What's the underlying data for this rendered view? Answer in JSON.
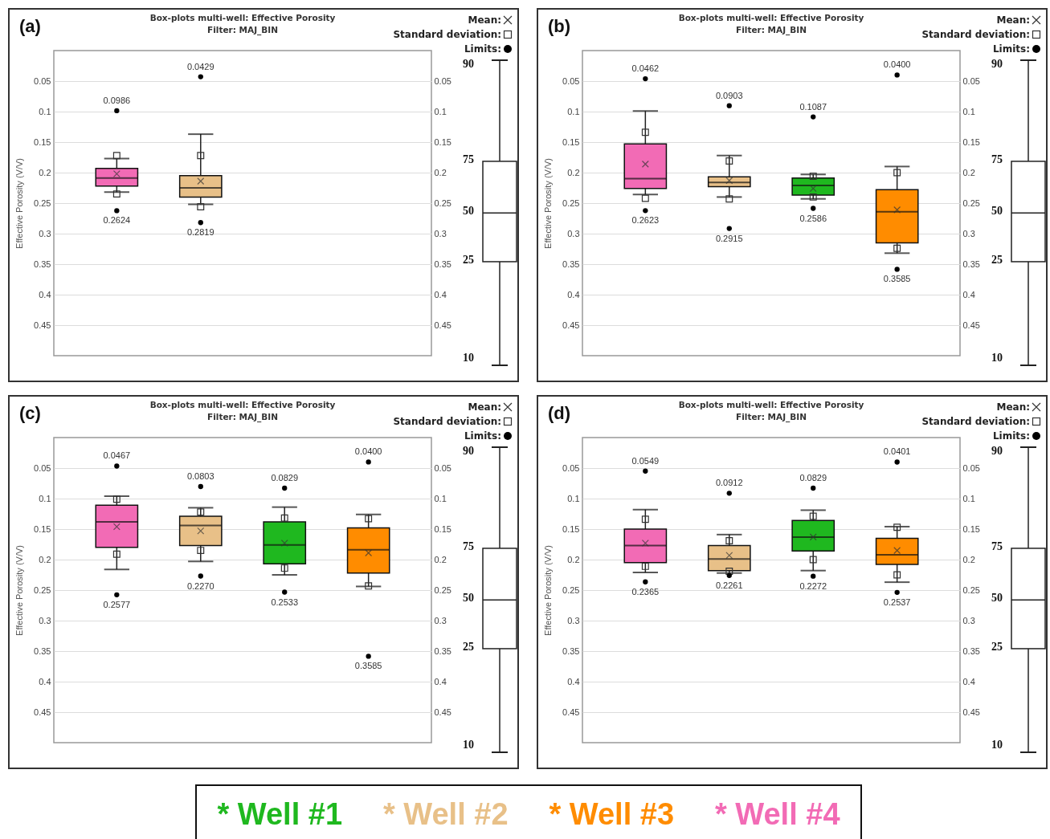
{
  "chart_data": [
    {
      "type": "box",
      "title": "Box-plots multi-well: Effective Porosity",
      "subtitle": "Filter: MAJ_BIN",
      "ylabel": "Effective Porosity (V/V)",
      "categories": [
        null,
        null,
        null,
        null
      ],
      "ylim": [
        0.5,
        0
      ],
      "yticks": [
        0.05,
        0.1,
        0.15,
        0.2,
        0.25,
        0.3,
        0.35,
        0.4,
        0.45
      ],
      "y2lim": [
        0.5,
        0
      ],
      "y2ticks": [
        0.05,
        0.1,
        0.15,
        0.2,
        0.25,
        0.3,
        0.35,
        0.4,
        0.45
      ],
      "grid": "y",
      "annotations": [
        "(a)",
        "Mean:",
        "Standard deviation:",
        "Limits:",
        "90",
        "75",
        "50",
        "25",
        "10"
      ],
      "series": [
        {
          "color": "#1fb81f",
          "boxes": [
            null,
            null,
            null,
            null
          ]
        },
        {
          "color": "#e8c088",
          "boxes": [
            null,
            {
              "low": 0.137,
              "q1": 0.205,
              "median": 0.225,
              "q3": 0.24,
              "high": 0.252,
              "mean": 0.214
            },
            null,
            null
          ]
        },
        {
          "color": "#ff8c00",
          "boxes": [
            null,
            null,
            null,
            null
          ]
        },
        {
          "color": "#f26bb5",
          "boxes": [
            {
              "low": 0.177,
              "q1": 0.193,
              "median": 0.209,
              "q3": 0.222,
              "high": 0.232,
              "mean": 0.202
            },
            null,
            null,
            null
          ]
        },
        {
          "type": "scatter",
          "marker": "square",
          "color": "#333333",
          "values": [
            0.172,
            0.172,
            null,
            null
          ]
        },
        {
          "type": "scatter",
          "marker": "square",
          "color": "#333333",
          "values": [
            0.235,
            0.256,
            null,
            null
          ]
        },
        {
          "type": "scatter",
          "marker": "circle",
          "color": "#000000",
          "values": [
            0.0986,
            0.0429,
            null,
            null
          ],
          "value_labels": [
            "0.0986",
            "0.0429",
            null,
            null
          ]
        },
        {
          "type": "scatter",
          "marker": "circle",
          "color": "#000000",
          "values": [
            0.2624,
            0.2819,
            null,
            null
          ],
          "value_labels": [
            "0.2624",
            "0.2819",
            null,
            null
          ]
        }
      ]
    },
    {
      "type": "box",
      "title": "Box-plots multi-well: Effective Porosity",
      "subtitle": "Filter: MAJ_BIN",
      "ylabel": "Effective Porosity (V/V)",
      "categories": [
        null,
        null,
        null,
        null
      ],
      "ylim": [
        0.5,
        0
      ],
      "yticks": [
        0.05,
        0.1,
        0.15,
        0.2,
        0.25,
        0.3,
        0.35,
        0.4,
        0.45
      ],
      "y2lim": [
        0.5,
        0
      ],
      "y2ticks": [
        0.05,
        0.1,
        0.15,
        0.2,
        0.25,
        0.3,
        0.35,
        0.4,
        0.45
      ],
      "grid": "y",
      "annotations": [
        "(b)",
        "Mean:",
        "Standard deviation:",
        "Limits:",
        "90",
        "75",
        "50",
        "25",
        "10"
      ],
      "series": [
        {
          "color": "#1fb81f",
          "boxes": [
            null,
            null,
            {
              "low": 0.203,
              "q1": 0.209,
              "median": 0.221,
              "q3": 0.237,
              "high": 0.243,
              "mean": 0.226
            },
            null
          ]
        },
        {
          "color": "#e8c088",
          "boxes": [
            null,
            {
              "low": 0.172,
              "q1": 0.207,
              "median": 0.216,
              "q3": 0.223,
              "high": 0.24,
              "mean": 0.213
            },
            null,
            null
          ]
        },
        {
          "color": "#ff8c00",
          "boxes": [
            null,
            null,
            null,
            {
              "low": 0.19,
              "q1": 0.228,
              "median": 0.264,
              "q3": 0.315,
              "high": 0.332,
              "mean": 0.261
            }
          ]
        },
        {
          "color": "#f26bb5",
          "boxes": [
            {
              "low": 0.099,
              "q1": 0.153,
              "median": 0.21,
              "q3": 0.226,
              "high": 0.236,
              "mean": 0.186
            },
            null,
            null,
            null
          ]
        },
        {
          "type": "scatter",
          "marker": "square",
          "color": "#333333",
          "values": [
            0.134,
            0.181,
            0.206,
            0.2
          ]
        },
        {
          "type": "scatter",
          "marker": "square",
          "color": "#333333",
          "values": [
            0.242,
            0.243,
            0.24,
            0.324
          ]
        },
        {
          "type": "scatter",
          "marker": "circle",
          "color": "#000000",
          "values": [
            0.0462,
            0.0903,
            0.1087,
            0.04
          ],
          "value_labels": [
            "0.0462",
            "0.0903",
            "0.1087",
            "0.0400"
          ]
        },
        {
          "type": "scatter",
          "marker": "circle",
          "color": "#000000",
          "values": [
            0.2623,
            0.2915,
            0.2586,
            0.3585
          ],
          "value_labels": [
            "0.2623",
            "0.2915",
            "0.2586",
            "0.3585"
          ]
        }
      ]
    },
    {
      "type": "box",
      "title": "Box-plots multi-well: Effective Porosity",
      "subtitle": "Filter: MAJ_BIN",
      "ylabel": "Effective Porosity (V/V)",
      "categories": [
        null,
        null,
        null,
        null
      ],
      "ylim": [
        0.5,
        0
      ],
      "yticks": [
        0.05,
        0.1,
        0.15,
        0.2,
        0.25,
        0.3,
        0.35,
        0.4,
        0.45
      ],
      "y2lim": [
        0.5,
        0
      ],
      "y2ticks": [
        0.05,
        0.1,
        0.15,
        0.2,
        0.25,
        0.3,
        0.35,
        0.4,
        0.45
      ],
      "grid": "y",
      "annotations": [
        "(c)",
        "Mean:",
        "Standard deviation:",
        "Limits:",
        "90",
        "75",
        "50",
        "25",
        "10"
      ],
      "series": [
        {
          "color": "#1fb81f",
          "boxes": [
            null,
            null,
            {
              "low": 0.114,
              "q1": 0.138,
              "median": 0.176,
              "q3": 0.207,
              "high": 0.225,
              "mean": 0.173
            },
            null
          ]
        },
        {
          "color": "#e8c088",
          "boxes": [
            null,
            {
              "low": 0.115,
              "q1": 0.129,
              "median": 0.144,
              "q3": 0.177,
              "high": 0.203,
              "mean": 0.153
            },
            null,
            null
          ]
        },
        {
          "color": "#ff8c00",
          "boxes": [
            null,
            null,
            null,
            {
              "low": 0.126,
              "q1": 0.148,
              "median": 0.184,
              "q3": 0.222,
              "high": 0.244,
              "mean": 0.189
            }
          ]
        },
        {
          "color": "#f26bb5",
          "boxes": [
            {
              "low": 0.096,
              "q1": 0.111,
              "median": 0.138,
              "q3": 0.18,
              "high": 0.216,
              "mean": 0.146
            },
            null,
            null,
            null
          ]
        },
        {
          "type": "scatter",
          "marker": "square",
          "color": "#333333",
          "values": [
            0.101,
            0.122,
            0.132,
            0.133
          ]
        },
        {
          "type": "scatter",
          "marker": "square",
          "color": "#333333",
          "values": [
            0.191,
            0.185,
            0.214,
            0.243
          ]
        },
        {
          "type": "scatter",
          "marker": "circle",
          "color": "#000000",
          "values": [
            0.0467,
            0.0803,
            0.0829,
            0.04
          ],
          "value_labels": [
            "0.0467",
            "0.0803",
            "0.0829",
            "0.0400"
          ]
        },
        {
          "type": "scatter",
          "marker": "circle",
          "color": "#000000",
          "values": [
            0.2577,
            0.227,
            0.2533,
            0.3585
          ],
          "value_labels": [
            "0.2577",
            "0.2270",
            "0.2533",
            "0.3585"
          ]
        }
      ]
    },
    {
      "type": "box",
      "title": "Box-plots multi-well: Effective Porosity",
      "subtitle": "Filter: MAJ_BIN",
      "ylabel": "Effective Porosity (V/V)",
      "categories": [
        null,
        null,
        null,
        null
      ],
      "ylim": [
        0.5,
        0
      ],
      "yticks": [
        0.05,
        0.1,
        0.15,
        0.2,
        0.25,
        0.3,
        0.35,
        0.4,
        0.45
      ],
      "y2lim": [
        0.5,
        0
      ],
      "y2ticks": [
        0.05,
        0.1,
        0.15,
        0.2,
        0.25,
        0.3,
        0.35,
        0.4,
        0.45
      ],
      "grid": "y",
      "legend": "bottom",
      "annotations": [
        "(d)",
        "Mean:",
        "Standard deviation:",
        "Limits:",
        "90",
        "75",
        "50",
        "25",
        "10"
      ],
      "series": [
        {
          "name": "* Well #1",
          "color": "#1fb81f",
          "boxes": [
            null,
            null,
            {
              "low": 0.119,
              "q1": 0.136,
              "median": 0.163,
              "q3": 0.186,
              "high": 0.218,
              "mean": 0.163
            },
            null
          ]
        },
        {
          "name": "* Well #2",
          "color": "#e8c088",
          "boxes": [
            null,
            {
              "low": 0.159,
              "q1": 0.177,
              "median": 0.199,
              "q3": 0.218,
              "high": 0.222,
              "mean": 0.193
            },
            null,
            null
          ]
        },
        {
          "name": "* Well #3",
          "color": "#ff8c00",
          "boxes": [
            null,
            null,
            null,
            {
              "low": 0.146,
              "q1": 0.165,
              "median": 0.192,
              "q3": 0.208,
              "high": 0.237,
              "mean": 0.185
            }
          ]
        },
        {
          "name": "* Well #4",
          "color": "#f26bb5",
          "boxes": [
            {
              "low": 0.118,
              "q1": 0.15,
              "median": 0.177,
              "q3": 0.205,
              "high": 0.221,
              "mean": 0.173
            },
            null,
            null,
            null
          ]
        },
        {
          "type": "scatter",
          "marker": "square",
          "color": "#333333",
          "values": [
            0.134,
            0.169,
            0.129,
            0.147
          ]
        },
        {
          "type": "scatter",
          "marker": "square",
          "color": "#333333",
          "values": [
            0.211,
            0.219,
            0.2,
            0.225
          ]
        },
        {
          "type": "scatter",
          "marker": "circle",
          "color": "#000000",
          "values": [
            0.0549,
            0.0912,
            0.0829,
            0.0401
          ],
          "value_labels": [
            "0.0549",
            "0.0912",
            "0.0829",
            "0.0401"
          ]
        },
        {
          "type": "scatter",
          "marker": "circle",
          "color": "#000000",
          "values": [
            0.2365,
            0.2261,
            0.2272,
            0.2537
          ],
          "value_labels": [
            "0.2365",
            "0.2261",
            "0.2272",
            "0.2537"
          ]
        }
      ]
    }
  ]
}
